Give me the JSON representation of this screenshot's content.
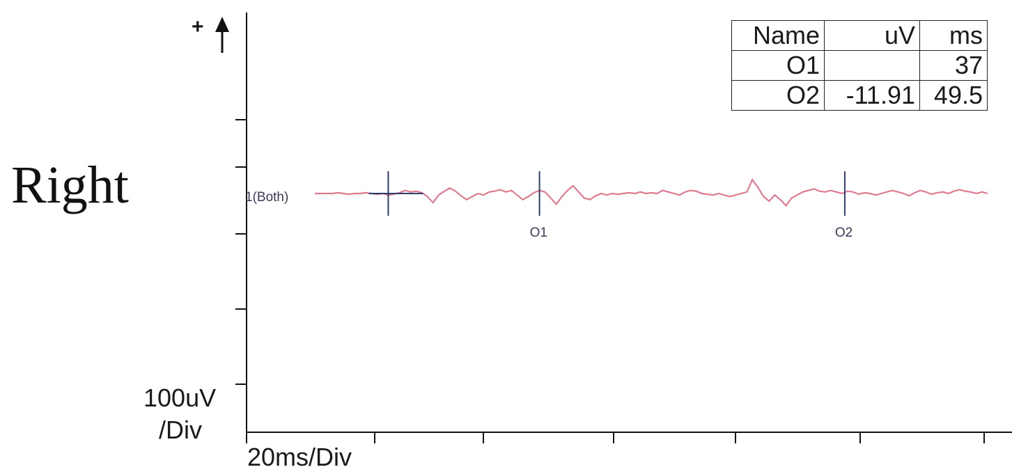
{
  "side_label": "Right",
  "polarity": "+",
  "scale": {
    "y_line1": "100uV",
    "y_line2": "/Div",
    "x": "20ms/Div"
  },
  "table": {
    "headers": [
      "Name",
      "uV",
      "ms"
    ],
    "rows": [
      [
        "O1",
        "",
        "37"
      ],
      [
        "O2",
        "-11.91",
        "49.5"
      ]
    ]
  },
  "colors": {
    "trace": "#e07a8e",
    "marker": "#2c3e6a",
    "axis": "#111111"
  },
  "chart_data": {
    "type": "line",
    "title": "",
    "xlabel": "",
    "ylabel": "",
    "x_unit": "ms",
    "y_unit": "uV",
    "x_per_div": 20,
    "y_per_div": 100,
    "series": [
      {
        "name": "1(Both)",
        "points": [
          [
            0,
            0
          ],
          [
            2,
            1
          ],
          [
            4,
            0
          ],
          [
            6,
            -1
          ],
          [
            8,
            0
          ],
          [
            10,
            0
          ],
          [
            12,
            1
          ],
          [
            14,
            0
          ],
          [
            16,
            -1
          ],
          [
            18,
            0
          ],
          [
            20,
            -2
          ],
          [
            22,
            -1
          ],
          [
            24,
            1
          ],
          [
            26,
            4
          ],
          [
            28,
            2
          ],
          [
            30,
            3
          ],
          [
            32,
            1
          ],
          [
            34,
            -4
          ],
          [
            36,
            -12
          ],
          [
            38,
            -2
          ],
          [
            40,
            3
          ],
          [
            42,
            7
          ],
          [
            44,
            3
          ],
          [
            46,
            -3
          ],
          [
            48,
            -8
          ],
          [
            50,
            -4
          ],
          [
            52,
            0
          ],
          [
            54,
            -2
          ],
          [
            56,
            2
          ],
          [
            58,
            3
          ],
          [
            60,
            5
          ],
          [
            62,
            2
          ],
          [
            64,
            4
          ],
          [
            66,
            -2
          ],
          [
            68,
            -8
          ],
          [
            70,
            -4
          ],
          [
            72,
            1
          ],
          [
            74,
            4
          ],
          [
            76,
            2
          ],
          [
            78,
            -6
          ],
          [
            80,
            -14
          ],
          [
            82,
            -4
          ],
          [
            84,
            4
          ],
          [
            86,
            10
          ],
          [
            88,
            2
          ],
          [
            90,
            -6
          ],
          [
            92,
            -8
          ],
          [
            94,
            -3
          ],
          [
            96,
            0
          ],
          [
            98,
            -2
          ],
          [
            100,
            0
          ],
          [
            102,
            -1
          ],
          [
            104,
            0
          ],
          [
            106,
            1
          ],
          [
            108,
            0
          ],
          [
            110,
            2
          ],
          [
            112,
            0
          ],
          [
            114,
            1
          ],
          [
            116,
            0
          ],
          [
            118,
            4
          ],
          [
            120,
            2
          ],
          [
            122,
            0
          ],
          [
            124,
            -2
          ],
          [
            126,
            2
          ],
          [
            128,
            4
          ],
          [
            130,
            3
          ],
          [
            132,
            0
          ],
          [
            134,
            -1
          ],
          [
            136,
            -2
          ],
          [
            138,
            0
          ],
          [
            140,
            -2
          ],
          [
            142,
            -4
          ],
          [
            144,
            -2
          ],
          [
            146,
            0
          ],
          [
            148,
            2
          ],
          [
            150,
            18
          ],
          [
            152,
            8
          ],
          [
            154,
            -4
          ],
          [
            156,
            -10
          ],
          [
            158,
            -2
          ],
          [
            160,
            -8
          ],
          [
            162,
            -16
          ],
          [
            164,
            -6
          ],
          [
            166,
            -2
          ],
          [
            168,
            2
          ],
          [
            170,
            4
          ],
          [
            172,
            6
          ],
          [
            174,
            3
          ],
          [
            176,
            2
          ],
          [
            178,
            4
          ],
          [
            180,
            2
          ],
          [
            182,
            0
          ],
          [
            184,
            3
          ],
          [
            186,
            2
          ],
          [
            188,
            -1
          ],
          [
            190,
            1
          ],
          [
            192,
            0
          ],
          [
            194,
            -2
          ],
          [
            196,
            0
          ],
          [
            198,
            2
          ],
          [
            200,
            4
          ],
          [
            202,
            2
          ],
          [
            204,
            0
          ],
          [
            206,
            -3
          ],
          [
            208,
            1
          ],
          [
            210,
            4
          ],
          [
            212,
            2
          ],
          [
            214,
            -1
          ],
          [
            216,
            1
          ],
          [
            218,
            2
          ],
          [
            220,
            0
          ],
          [
            222,
            3
          ],
          [
            224,
            5
          ],
          [
            226,
            3
          ],
          [
            228,
            2
          ],
          [
            230,
            0
          ],
          [
            232,
            2
          ],
          [
            234,
            0
          ]
        ]
      }
    ],
    "markers": [
      {
        "name": "",
        "x": 20
      },
      {
        "name": "O1",
        "x": 74
      },
      {
        "name": "O2",
        "x": 183
      }
    ]
  }
}
